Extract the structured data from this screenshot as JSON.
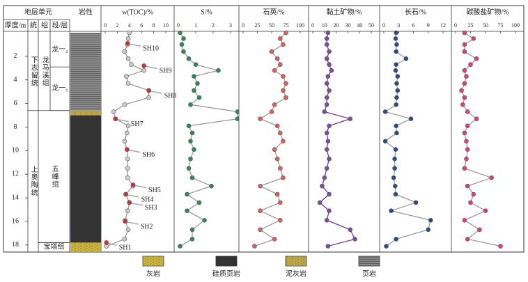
{
  "chart_data": {
    "type": "well_log",
    "header": {
      "group": "地层单元",
      "depth": "厚度/m",
      "series": "统",
      "formation": "组",
      "member": "段/层",
      "lithology": "岩性"
    },
    "ylim": [
      0,
      18.6
    ],
    "yticks": [
      2,
      4,
      6,
      8,
      10,
      12,
      14,
      16,
      18
    ],
    "depths": [
      0,
      0.5,
      1,
      1.6,
      2.2,
      2.7,
      3.2,
      3.7,
      4.3,
      4.9,
      5.5,
      6.1,
      6.7,
      7.3,
      7.9,
      8.5,
      9.2,
      9.9,
      10.7,
      11.5,
      12.3,
      13.0,
      13.7,
      14.4,
      15.1,
      15.9,
      16.7,
      17.5,
      18.1
    ],
    "tracks": [
      {
        "name": "w(TOC)/%",
        "xlim": [
          0,
          10
        ],
        "xticks": [
          0,
          2,
          4,
          6,
          8,
          10
        ],
        "color": "#cccccc",
        "line": "#999999",
        "values": [
          4.0,
          3.8,
          3.7,
          3.2,
          3.8,
          4.3,
          6.4,
          3.5,
          3.8,
          7.2,
          7.2,
          3.2,
          1.4,
          1.7,
          3.8,
          3.6,
          3.2,
          3.6,
          3.7,
          3.7,
          3.7,
          4.6,
          3.4,
          4.0,
          3.7,
          3.3,
          3.8,
          3.2,
          0.2
        ]
      },
      {
        "name": "S/%",
        "xlim": [
          0,
          3
        ],
        "xticks": [
          0,
          1,
          2,
          3
        ],
        "color": "#2e8b57",
        "line": "#999999",
        "values": [
          0.1,
          0.3,
          0.2,
          0.3,
          0.6,
          1.0,
          2.3,
          0.9,
          1.1,
          0.9,
          1.2,
          0.7,
          3.4,
          3.4,
          0.6,
          0.8,
          0.7,
          0.9,
          0.7,
          0.6,
          0.8,
          1.9,
          0.5,
          1.2,
          0.5,
          1.5,
          0.8,
          0.8,
          0.1
        ]
      },
      {
        "name": "石英/%",
        "xlim": [
          0,
          100
        ],
        "xticks": [
          0,
          25,
          50,
          75,
          100
        ],
        "color": "#d9625a",
        "line": "#999999",
        "values": [
          75,
          65,
          70,
          50,
          60,
          65,
          55,
          70,
          75,
          70,
          75,
          55,
          50,
          30,
          60,
          65,
          70,
          55,
          60,
          65,
          70,
          30,
          60,
          65,
          30,
          65,
          30,
          55,
          20
        ]
      },
      {
        "name": "黏土矿物/%",
        "xlim": [
          0,
          50
        ],
        "xticks": [
          0,
          10,
          20,
          30,
          40,
          50
        ],
        "color": "#7b4fa0",
        "line": "#7b2fa0",
        "values": [
          13,
          12,
          12,
          14,
          12,
          14,
          16,
          13,
          12,
          14,
          12,
          12,
          10,
          32,
          14,
          12,
          13,
          12,
          14,
          12,
          10,
          8,
          14,
          6,
          14,
          12,
          32,
          36,
          13
        ]
      },
      {
        "name": "长石/%",
        "xlim": [
          0,
          12
        ],
        "xticks": [
          0,
          3,
          6,
          9,
          12
        ],
        "color": "#2b4c8c",
        "line": "#999999",
        "values": [
          2.5,
          2.4,
          2.6,
          2.5,
          4.5,
          2.5,
          2.4,
          2.8,
          2.6,
          2.8,
          2.6,
          2.5,
          0.3,
          5.5,
          2.5,
          2.6,
          0.3,
          2.4,
          2.2,
          2.2,
          2.0,
          2.3,
          2.4,
          6.5,
          1.5,
          9.5,
          9,
          2.5,
          0.5
        ]
      },
      {
        "name": "碳酸盐矿物/%",
        "xlim": [
          0,
          100
        ],
        "xticks": [
          0,
          25,
          50,
          75,
          100
        ],
        "color": "#e0407a",
        "line": "#999999",
        "values": [
          15,
          30,
          15,
          15,
          35,
          25,
          15,
          18,
          15,
          10,
          15,
          12,
          20,
          35,
          20,
          15,
          18,
          20,
          18,
          15,
          60,
          20,
          30,
          25,
          50,
          15,
          40,
          20,
          75
        ]
      }
    ],
    "samples": [
      {
        "label": "SH10",
        "depth": 0.9,
        "value": 3.7
      },
      {
        "label": "SH9",
        "depth": 2.8,
        "value": 6.4
      },
      {
        "label": "SH8",
        "depth": 4.9,
        "value": 7.2
      },
      {
        "label": "SH7",
        "depth": 7.3,
        "value": 1.7
      },
      {
        "label": "SH6",
        "depth": 9.9,
        "value": 3.6
      },
      {
        "label": "SH5",
        "depth": 12.9,
        "value": 4.6
      },
      {
        "label": "SH4",
        "depth": 13.7,
        "value": 3.4
      },
      {
        "label": "SH3",
        "depth": 14.4,
        "value": 4.0
      },
      {
        "label": "SH2",
        "depth": 16.0,
        "value": 3.3
      },
      {
        "label": "SH1",
        "depth": 17.8,
        "value": 0.2
      }
    ],
    "series_units": [
      {
        "name": "下志留统",
        "top": 0,
        "base": 6.6
      },
      {
        "name": "上奥陶统",
        "top": 6.6,
        "base": 18.6
      }
    ],
    "formations": [
      {
        "name": "龙马溪组",
        "top": 0,
        "base": 6.6
      },
      {
        "name": "五峰组",
        "top": 6.6,
        "base": 17.8
      },
      {
        "name": "宝塔组",
        "top": 17.8,
        "base": 18.6
      }
    ],
    "members": [
      {
        "name": "龙一₂",
        "top": 0,
        "base": 2.9
      },
      {
        "name": "龙一₁",
        "top": 2.9,
        "base": 6.6
      }
    ],
    "legend": [
      {
        "name": "灰岩",
        "color": "#f0d030"
      },
      {
        "name": "硅质页岩",
        "color": "#333333"
      },
      {
        "name": "泥灰岩",
        "color": "#e0c040"
      },
      {
        "name": "页岩",
        "color": "#8a8a8a"
      }
    ],
    "lithology": [
      {
        "type": 3,
        "top": 0,
        "base": 6.6
      },
      {
        "type": 2,
        "top": 6.6,
        "base": 7.0
      },
      {
        "type": 1,
        "top": 7.0,
        "base": 17.8
      },
      {
        "type": 0,
        "top": 17.8,
        "base": 18.6
      }
    ]
  }
}
